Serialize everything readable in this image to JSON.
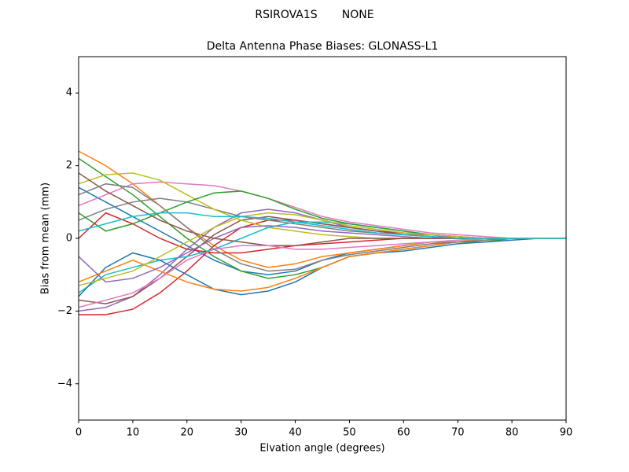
{
  "chart_data": {
    "type": "line",
    "suptitle": "RSIROVA1S       NONE",
    "title": "Delta Antenna Phase Biases: GLONASS-L1",
    "xlabel": "Elvation angle (degrees)",
    "ylabel": "Bias from mean (mm)",
    "x": [
      0,
      5,
      10,
      15,
      20,
      25,
      30,
      35,
      40,
      45,
      50,
      55,
      60,
      65,
      70,
      75,
      80,
      85,
      90
    ],
    "xlim": [
      0,
      90
    ],
    "xticks": [
      0,
      10,
      20,
      30,
      40,
      50,
      60,
      70,
      80,
      90
    ],
    "ylim": [
      -5,
      5
    ],
    "yticks": [
      {
        "value": -4,
        "label": "−4"
      },
      {
        "value": -2,
        "label": "−2"
      },
      0,
      2,
      4
    ],
    "series": [
      {
        "color": "#1f77b4",
        "values": [
          1.4,
          1.0,
          0.6,
          0.2,
          -0.2,
          -0.6,
          -0.9,
          -1.0,
          -0.9,
          -0.6,
          -0.4,
          -0.3,
          -0.2,
          -0.1,
          -0.1,
          0,
          0,
          0,
          0
        ]
      },
      {
        "color": "#ff7f0e",
        "values": [
          2.4,
          2.0,
          1.5,
          0.9,
          0.3,
          -0.2,
          -0.6,
          -0.8,
          -0.7,
          -0.5,
          -0.4,
          -0.3,
          -0.2,
          -0.1,
          -0.1,
          0,
          0,
          0,
          0
        ]
      },
      {
        "color": "#2ca02c",
        "values": [
          2.2,
          1.7,
          1.2,
          0.6,
          0.0,
          -0.5,
          -0.9,
          -1.1,
          -1.0,
          -0.8,
          -0.5,
          -0.4,
          -0.3,
          -0.2,
          -0.1,
          -0.1,
          0,
          0,
          0
        ]
      },
      {
        "color": "#d62728",
        "values": [
          -2.1,
          -2.1,
          -1.95,
          -1.5,
          -0.9,
          -0.2,
          0.3,
          0.5,
          0.5,
          0.4,
          0.3,
          0.2,
          0.15,
          0.1,
          0.05,
          0,
          0,
          0,
          0
        ]
      },
      {
        "color": "#9467bd",
        "values": [
          -2.0,
          -1.9,
          -1.6,
          -1.0,
          -0.3,
          0.3,
          0.7,
          0.8,
          0.7,
          0.5,
          0.3,
          0.2,
          0.1,
          0.1,
          0,
          0,
          0,
          0,
          0
        ]
      },
      {
        "color": "#8c564b",
        "values": [
          -1.7,
          -1.8,
          -1.6,
          -1.1,
          -0.5,
          0.1,
          0.5,
          0.6,
          0.5,
          0.4,
          0.3,
          0.2,
          0.1,
          0.05,
          0,
          0,
          0,
          0,
          0
        ]
      },
      {
        "color": "#e377c2",
        "values": [
          0.9,
          1.2,
          1.5,
          1.55,
          1.5,
          1.45,
          1.3,
          1.1,
          0.85,
          0.6,
          0.45,
          0.35,
          0.25,
          0.15,
          0.1,
          0.05,
          0,
          0,
          0
        ]
      },
      {
        "color": "#7f7f7f",
        "values": [
          0.5,
          0.8,
          1.0,
          1.1,
          1.0,
          0.8,
          0.6,
          0.5,
          0.4,
          0.3,
          0.2,
          0.15,
          0.1,
          0.05,
          0,
          0,
          0,
          0,
          0
        ]
      },
      {
        "color": "#bcbd22",
        "values": [
          1.5,
          1.75,
          1.8,
          1.6,
          1.2,
          0.8,
          0.5,
          0.3,
          0.2,
          0.1,
          0.05,
          0,
          0,
          0,
          0,
          0,
          0,
          0,
          0
        ]
      },
      {
        "color": "#17becf",
        "values": [
          -1.5,
          -1.0,
          -0.8,
          -0.6,
          -0.5,
          -0.3,
          0,
          0.3,
          0.45,
          0.45,
          0.4,
          0.3,
          0.2,
          0.1,
          0.05,
          0,
          0,
          0,
          0
        ]
      },
      {
        "color": "#1f77b4",
        "values": [
          -1.6,
          -0.8,
          -0.4,
          -0.6,
          -1.0,
          -1.4,
          -1.55,
          -1.45,
          -1.2,
          -0.8,
          -0.5,
          -0.4,
          -0.35,
          -0.25,
          -0.15,
          -0.1,
          -0.05,
          0,
          0
        ]
      },
      {
        "color": "#ff7f0e",
        "values": [
          -1.2,
          -0.9,
          -0.6,
          -0.9,
          -1.2,
          -1.4,
          -1.45,
          -1.35,
          -1.1,
          -0.8,
          -0.5,
          -0.4,
          -0.3,
          -0.2,
          -0.1,
          -0.05,
          0,
          0,
          0
        ]
      },
      {
        "color": "#2ca02c",
        "values": [
          0.7,
          0.2,
          0.4,
          0.7,
          1.0,
          1.25,
          1.3,
          1.1,
          0.8,
          0.55,
          0.4,
          0.3,
          0.2,
          0.1,
          0.05,
          0,
          0,
          0,
          0
        ]
      },
      {
        "color": "#d62728",
        "values": [
          0.0,
          0.7,
          0.4,
          0.0,
          -0.3,
          -0.4,
          -0.4,
          -0.3,
          -0.2,
          -0.15,
          -0.1,
          -0.05,
          0,
          0,
          0,
          0,
          0,
          0,
          0
        ]
      },
      {
        "color": "#9467bd",
        "values": [
          -0.5,
          -1.2,
          -1.1,
          -0.8,
          -0.4,
          0.0,
          0.3,
          0.35,
          0.3,
          0.2,
          0.15,
          0.1,
          0.05,
          0,
          0,
          0,
          0,
          0,
          0
        ]
      },
      {
        "color": "#8c564b",
        "values": [
          1.8,
          1.3,
          0.9,
          0.5,
          0.2,
          0.0,
          -0.1,
          -0.2,
          -0.2,
          -0.1,
          0,
          0,
          0,
          0,
          0,
          0,
          0,
          0,
          0
        ]
      },
      {
        "color": "#e377c2",
        "values": [
          -1.9,
          -1.7,
          -1.5,
          -1.1,
          -0.6,
          -0.3,
          -0.2,
          -0.2,
          -0.3,
          -0.3,
          -0.25,
          -0.2,
          -0.15,
          -0.1,
          -0.05,
          0,
          0,
          0,
          0
        ]
      },
      {
        "color": "#7f7f7f",
        "values": [
          1.2,
          1.5,
          1.4,
          0.9,
          0.3,
          -0.3,
          -0.7,
          -0.9,
          -0.85,
          -0.6,
          -0.45,
          -0.35,
          -0.25,
          -0.15,
          -0.1,
          -0.05,
          0,
          0,
          0
        ]
      },
      {
        "color": "#bcbd22",
        "values": [
          -1.3,
          -1.1,
          -0.9,
          -0.5,
          -0.1,
          0.3,
          0.6,
          0.7,
          0.65,
          0.5,
          0.35,
          0.25,
          0.15,
          0.1,
          0.05,
          0,
          0,
          0,
          0
        ]
      },
      {
        "color": "#17becf",
        "values": [
          0.2,
          0.4,
          0.6,
          0.7,
          0.7,
          0.6,
          0.6,
          0.55,
          0.45,
          0.35,
          0.25,
          0.15,
          0.1,
          0.05,
          0,
          0,
          0,
          0,
          0
        ]
      }
    ]
  }
}
